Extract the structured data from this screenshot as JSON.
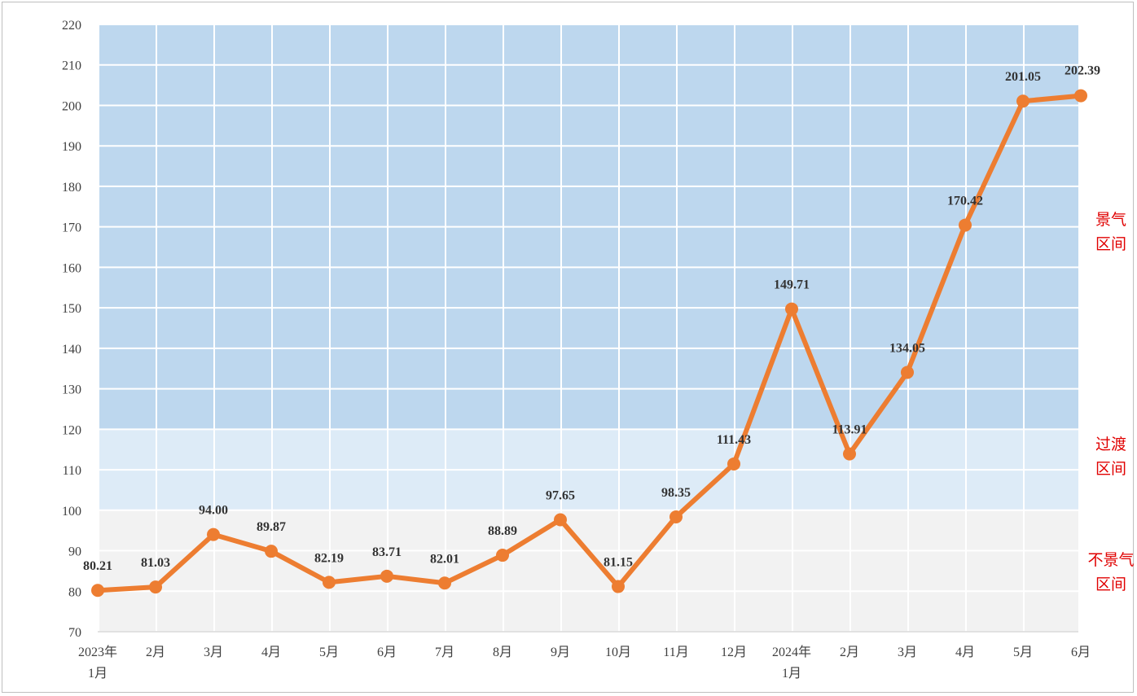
{
  "chart_data": {
    "type": "line",
    "title": "",
    "xlabel": "",
    "ylabel": "",
    "ylim": [
      70,
      220
    ],
    "yticks": [
      70,
      80,
      90,
      100,
      110,
      120,
      130,
      140,
      150,
      160,
      170,
      180,
      190,
      200,
      210,
      220
    ],
    "grid": true,
    "legend": "none",
    "categories": [
      [
        "2023年",
        "1月"
      ],
      [
        "2月"
      ],
      [
        "3月"
      ],
      [
        "4月"
      ],
      [
        "5月"
      ],
      [
        "6月"
      ],
      [
        "7月"
      ],
      [
        "8月"
      ],
      [
        "9月"
      ],
      [
        "10月"
      ],
      [
        "11月"
      ],
      [
        "12月"
      ],
      [
        "2024年",
        "1月"
      ],
      [
        "2月"
      ],
      [
        "3月"
      ],
      [
        "4月"
      ],
      [
        "5月"
      ],
      [
        "6月"
      ]
    ],
    "series": [
      {
        "values": [
          80.21,
          81.03,
          94.0,
          89.87,
          82.19,
          83.71,
          82.01,
          88.89,
          97.65,
          81.15,
          98.35,
          111.43,
          149.71,
          113.91,
          134.05,
          170.42,
          201.05,
          202.39
        ],
        "labels": [
          "80.21",
          "81.03",
          "94.00",
          "89.87",
          "82.19",
          "83.71",
          "82.01",
          "88.89",
          "97.65",
          "81.15",
          "98.35",
          "111.43",
          "149.71",
          "113.91",
          "134.05",
          "170.42",
          "201.05",
          "202.39"
        ],
        "color": "#ed7d31"
      }
    ],
    "zones": [
      {
        "from": 120,
        "to": 220,
        "label": [
          "景气",
          "区间"
        ],
        "color": "#bdd7ee"
      },
      {
        "from": 100,
        "to": 120,
        "label": [
          "过渡",
          "区间"
        ],
        "color": "#ddebf7"
      },
      {
        "from": 70,
        "to": 100,
        "label": [
          "不景气",
          "区间"
        ],
        "color": "#f2f2f2"
      }
    ],
    "zone_label_color": "#e00000"
  }
}
